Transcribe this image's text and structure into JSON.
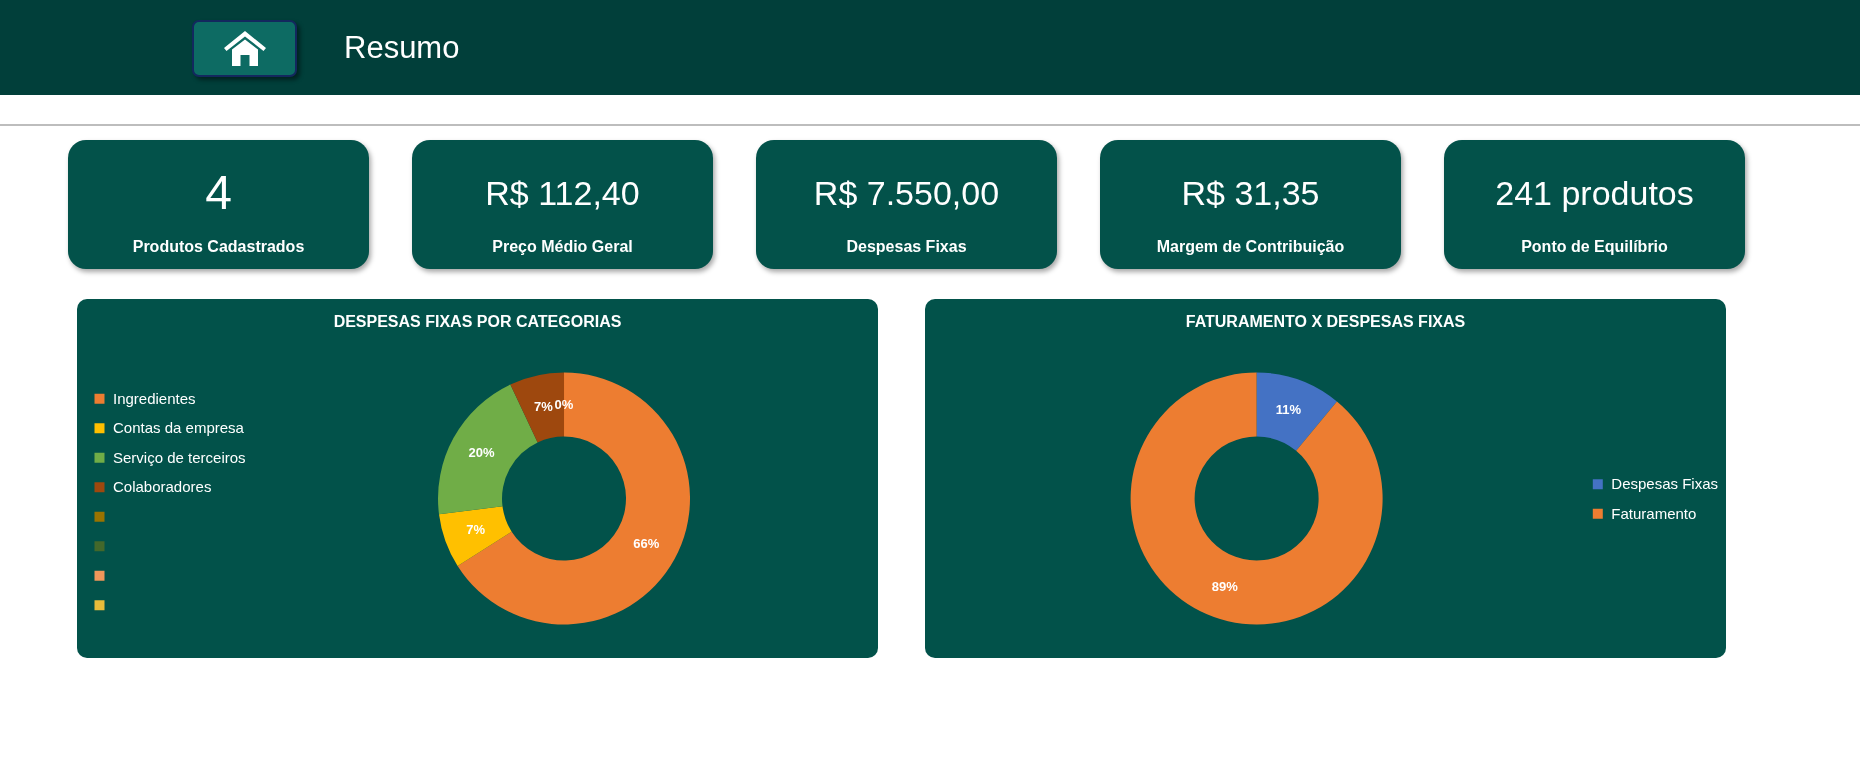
{
  "chart_data": [
    {
      "type": "other",
      "title": "Resumo",
      "annotations": [
        "4",
        "Produtos Cadastrados",
        "R$ 112,40",
        "Preço Médio Geral",
        "R$ 7.550,00",
        "Despesas Fixas",
        "R$ 31,35",
        "Margem de Contribuição",
        "241 produtos",
        "Ponto de Equilíbrio"
      ]
    },
    {
      "type": "donut",
      "title": "DESPESAS FIXAS POR CATEGORIAS",
      "categories": [
        "Ingredientes",
        "Contas da empresa",
        "Serviço de terceiros",
        "Colaboradores",
        null,
        null,
        null,
        null
      ],
      "values": [
        66,
        7,
        20,
        7,
        0,
        0,
        0,
        0
      ],
      "colors": [
        "#ed7d31",
        "#ffc000",
        "#70ad47",
        "#9e480e",
        "#997300",
        "#43682b",
        "#f1975a",
        "#e8bc3a"
      ],
      "value_labels": [
        "66%",
        "7%",
        "20%",
        "7%",
        null,
        null,
        null,
        "0%"
      ],
      "legend": "left"
    },
    {
      "type": "donut",
      "title": "FATURAMENTO X DESPESAS FIXAS",
      "categories": [
        "Despesas Fixas",
        "Faturamento"
      ],
      "values": [
        11,
        89
      ],
      "colors": [
        "#4472c4",
        "#ed7d31"
      ],
      "value_labels": [
        "11%",
        "89%"
      ],
      "legend": "right"
    }
  ]
}
